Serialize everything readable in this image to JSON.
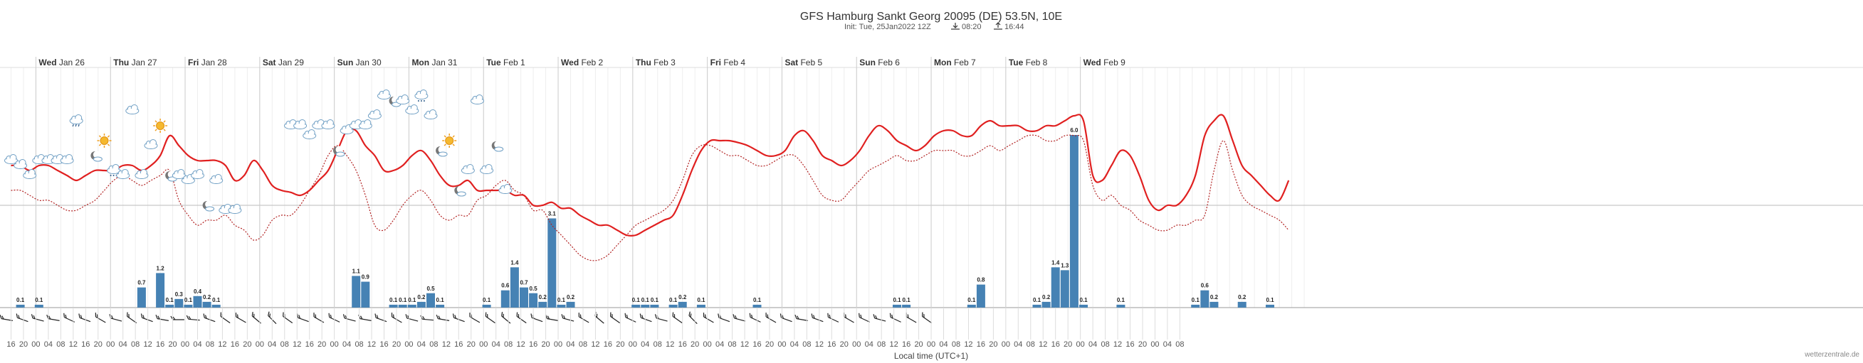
{
  "header": {
    "title": "GFS Hamburg Sankt Georg 20095 (DE) 53.5N, 10E",
    "init": "Init: Tue, 25Jan2022 12Z",
    "sunrise": "08:20",
    "sunset": "16:44"
  },
  "credit": "wetterzentrale.de",
  "chart_data": {
    "type": "meteogram",
    "x_axis": {
      "title": "Local time (UTC+1)",
      "day_labels": [
        {
          "weekday": "Wed",
          "date": "Jan 26"
        },
        {
          "weekday": "Thu",
          "date": "Jan 27"
        },
        {
          "weekday": "Fri",
          "date": "Jan 28"
        },
        {
          "weekday": "Sat",
          "date": "Jan 29"
        },
        {
          "weekday": "Sun",
          "date": "Jan 30"
        },
        {
          "weekday": "Mon",
          "date": "Jan 31"
        },
        {
          "weekday": "Tue",
          "date": "Feb 1"
        },
        {
          "weekday": "Wed",
          "date": "Feb 2"
        },
        {
          "weekday": "Thu",
          "date": "Feb 3"
        },
        {
          "weekday": "Fri",
          "date": "Feb 4"
        },
        {
          "weekday": "Sat",
          "date": "Feb 5"
        },
        {
          "weekday": "Sun",
          "date": "Feb 6"
        },
        {
          "weekday": "Mon",
          "date": "Feb 7"
        },
        {
          "weekday": "Tue",
          "date": "Feb 8"
        },
        {
          "weekday": "Wed",
          "date": "Feb 9"
        }
      ],
      "hour_labels": [
        "16",
        "20",
        "00",
        "04",
        "08",
        "12",
        "16",
        "20",
        "00",
        "04",
        "08",
        "12",
        "16",
        "20",
        "00",
        "04",
        "08",
        "12",
        "16",
        "20",
        "00",
        "04",
        "08",
        "12",
        "16",
        "20",
        "00",
        "04",
        "08",
        "12",
        "16",
        "20",
        "00",
        "04",
        "08",
        "12",
        "16",
        "20",
        "00",
        "04",
        "08",
        "12",
        "16",
        "20",
        "00",
        "04",
        "08",
        "12",
        "16",
        "20",
        "00",
        "04",
        "08",
        "12",
        "16",
        "20",
        "00",
        "04",
        "08",
        "12",
        "16",
        "20",
        "00",
        "04",
        "08",
        "12",
        "16",
        "20",
        "00",
        "04",
        "08",
        "12",
        "16",
        "20",
        "00",
        "04",
        "08",
        "12",
        "16",
        "20",
        "00",
        "04",
        "08",
        "12",
        "16",
        "20",
        "00",
        "04",
        "08",
        "12",
        "16",
        "20",
        "00",
        "04",
        "08"
      ]
    },
    "temperature_line_hour_step": 3,
    "temperature_2m": [
      4.5,
      4.5,
      4.0,
      4.5,
      4.5,
      4.0,
      3.5,
      3.0,
      3.5,
      4.0,
      4.0,
      4.0,
      4.5,
      4.5,
      4.0,
      4.5,
      5.5,
      7.5,
      6.5,
      5.5,
      5.0,
      5.0,
      5.0,
      4.5,
      3.0,
      3.5,
      5.0,
      4.0,
      2.5,
      2.0,
      1.8,
      1.5,
      2.0,
      3.0,
      4.0,
      6.0,
      8.0,
      8.0,
      6.5,
      5.5,
      4.0,
      4.0,
      4.5,
      5.5,
      6.0,
      5.0,
      3.5,
      2.5,
      2.5,
      3.0,
      2.0,
      2.0,
      2.0,
      2.0,
      1.5,
      1.5,
      0.5,
      0.5,
      0.8,
      0.2,
      0.2,
      -0.5,
      -1.0,
      -1.5,
      -1.5,
      -2.0,
      -2.5,
      -2.5,
      -2.0,
      -1.5,
      -1.0,
      -0.5,
      1.5,
      4.0,
      6.0,
      7.0,
      7.0,
      7.0,
      6.8,
      6.5,
      6.0,
      5.5,
      5.5,
      6.0,
      7.5,
      8.0,
      7.0,
      5.5,
      5.0,
      4.5,
      5.0,
      6.0,
      7.5,
      8.5,
      8.0,
      7.0,
      6.5,
      6.0,
      6.5,
      7.5,
      8.0,
      8.0,
      7.5,
      7.5,
      8.5,
      9.0,
      8.5,
      8.5,
      8.5,
      8.0,
      8.0,
      8.5,
      8.5,
      9.0,
      9.5,
      9.0,
      3.5,
      3.0,
      4.5,
      6.0,
      5.5,
      3.5,
      1.0,
      0.0,
      0.5,
      0.5,
      1.5,
      3.5,
      7.5,
      9.0,
      9.5,
      7.0,
      4.5,
      3.5,
      2.5,
      1.5,
      1.0,
      3.0
    ],
    "dewpoint_2m": [
      2.0,
      2.0,
      1.5,
      1.0,
      1.0,
      0.5,
      0.0,
      0.0,
      0.5,
      1.0,
      2.0,
      3.0,
      3.5,
      3.0,
      2.5,
      3.0,
      3.5,
      4.0,
      1.0,
      -0.5,
      -1.5,
      -1.0,
      -1.0,
      -0.5,
      -1.5,
      -2.0,
      -3.0,
      -2.5,
      -1.0,
      -0.5,
      -0.5,
      0.5,
      2.0,
      3.5,
      5.5,
      6.5,
      5.5,
      4.0,
      1.5,
      -1.5,
      -2.0,
      -1.0,
      0.5,
      1.5,
      2.0,
      1.0,
      -0.5,
      -1.0,
      -0.5,
      -0.5,
      1.0,
      1.5,
      2.5,
      3.0,
      2.0,
      1.5,
      0.0,
      0.0,
      -1.5,
      -2.5,
      -3.5,
      -4.5,
      -5.0,
      -5.0,
      -4.5,
      -3.5,
      -2.5,
      -1.5,
      -1.0,
      -0.5,
      0.0,
      1.0,
      3.0,
      5.5,
      6.5,
      6.5,
      6.0,
      5.5,
      5.5,
      5.0,
      4.5,
      4.5,
      5.0,
      5.5,
      5.5,
      4.5,
      3.0,
      1.5,
      1.0,
      1.0,
      2.0,
      3.0,
      4.0,
      4.5,
      5.0,
      5.5,
      5.0,
      5.0,
      5.5,
      6.0,
      6.0,
      6.0,
      5.5,
      5.5,
      6.0,
      6.5,
      6.0,
      6.5,
      7.0,
      7.5,
      7.5,
      7.0,
      7.0,
      7.5,
      7.5,
      7.0,
      2.5,
      1.0,
      1.5,
      0.5,
      0.0,
      -1.0,
      -1.5,
      -2.0,
      -2.0,
      -1.5,
      -1.5,
      -1.0,
      -0.5,
      4.0,
      7.0,
      4.0,
      1.5,
      0.5,
      0.0,
      -0.5,
      -1.0,
      -2.0
    ],
    "precipitation_mm": [
      {
        "hour": 3,
        "value": 0.1
      },
      {
        "hour": 9,
        "value": 0.1
      },
      {
        "hour": 42,
        "value": 0.7
      },
      {
        "hour": 48,
        "value": 1.2
      },
      {
        "hour": 51,
        "value": 0.1
      },
      {
        "hour": 54,
        "value": 0.3
      },
      {
        "hour": 57,
        "value": 0.1
      },
      {
        "hour": 60,
        "value": 0.4
      },
      {
        "hour": 63,
        "value": 0.2
      },
      {
        "hour": 66,
        "value": 0.1
      },
      {
        "hour": 111,
        "value": 1.1
      },
      {
        "hour": 114,
        "value": 0.9
      },
      {
        "hour": 123,
        "value": 0.1
      },
      {
        "hour": 126,
        "value": 0.1
      },
      {
        "hour": 129,
        "value": 0.1
      },
      {
        "hour": 132,
        "value": 0.2
      },
      {
        "hour": 135,
        "value": 0.5
      },
      {
        "hour": 138,
        "value": 0.1
      },
      {
        "hour": 153,
        "value": 0.1
      },
      {
        "hour": 159,
        "value": 0.6
      },
      {
        "hour": 162,
        "value": 1.4
      },
      {
        "hour": 165,
        "value": 0.7
      },
      {
        "hour": 168,
        "value": 0.5
      },
      {
        "hour": 171,
        "value": 0.2
      },
      {
        "hour": 174,
        "value": 3.1
      },
      {
        "hour": 177,
        "value": 0.1
      },
      {
        "hour": 180,
        "value": 0.2
      },
      {
        "hour": 201,
        "value": 0.1
      },
      {
        "hour": 204,
        "value": 0.1
      },
      {
        "hour": 207,
        "value": 0.1
      },
      {
        "hour": 213,
        "value": 0.1
      },
      {
        "hour": 216,
        "value": 0.2
      },
      {
        "hour": 222,
        "value": 0.1
      },
      {
        "hour": 240,
        "value": 0.1
      },
      {
        "hour": 285,
        "value": 0.1
      },
      {
        "hour": 288,
        "value": 0.1
      },
      {
        "hour": 309,
        "value": 0.1
      },
      {
        "hour": 312,
        "value": 0.8
      },
      {
        "hour": 330,
        "value": 0.1
      },
      {
        "hour": 333,
        "value": 0.2
      },
      {
        "hour": 336,
        "value": 1.4
      },
      {
        "hour": 339,
        "value": 1.3
      },
      {
        "hour": 342,
        "value": 6.0
      },
      {
        "hour": 345,
        "value": 0.1
      },
      {
        "hour": 357,
        "value": 0.1
      },
      {
        "hour": 381,
        "value": 0.1
      },
      {
        "hour": 384,
        "value": 0.6
      },
      {
        "hour": 387,
        "value": 0.2
      },
      {
        "hour": 396,
        "value": 0.2
      },
      {
        "hour": 405,
        "value": 0.1
      }
    ],
    "weather_icons": [
      {
        "hour": 0,
        "temp": 5.0,
        "type": "cloud"
      },
      {
        "hour": 3,
        "temp": 4.5,
        "type": "cloud"
      },
      {
        "hour": 6,
        "temp": 3.5,
        "type": "cloud"
      },
      {
        "hour": 9,
        "temp": 5.0,
        "type": "cloud"
      },
      {
        "hour": 12,
        "temp": 5.0,
        "type": "cloud"
      },
      {
        "hour": 15,
        "temp": 5.0,
        "type": "cloud"
      },
      {
        "hour": 18,
        "temp": 5.0,
        "type": "cloud"
      },
      {
        "hour": 21,
        "temp": 9.0,
        "type": "rain-cloud"
      },
      {
        "hour": 27,
        "temp": 5.5,
        "type": "moon"
      },
      {
        "hour": 30,
        "temp": 7.0,
        "type": "sun"
      },
      {
        "hour": 33,
        "temp": 4.0,
        "type": "snow-cloud"
      },
      {
        "hour": 36,
        "temp": 3.5,
        "type": "cloud"
      },
      {
        "hour": 39,
        "temp": 10.0,
        "type": "cloud"
      },
      {
        "hour": 42,
        "temp": 3.5,
        "type": "cloud"
      },
      {
        "hour": 45,
        "temp": 6.5,
        "type": "cloud"
      },
      {
        "hour": 48,
        "temp": 8.5,
        "type": "sun"
      },
      {
        "hour": 51,
        "temp": 3.5,
        "type": "moon"
      },
      {
        "hour": 54,
        "temp": 3.5,
        "type": "cloud"
      },
      {
        "hour": 57,
        "temp": 3.0,
        "type": "cloud"
      },
      {
        "hour": 60,
        "temp": 3.5,
        "type": "cloud"
      },
      {
        "hour": 63,
        "temp": 0.5,
        "type": "moon"
      },
      {
        "hour": 66,
        "temp": 3.0,
        "type": "cloud"
      },
      {
        "hour": 69,
        "temp": 0.0,
        "type": "cloud"
      },
      {
        "hour": 72,
        "temp": 0.0,
        "type": "cloud"
      },
      {
        "hour": 90,
        "temp": 8.5,
        "type": "cloud"
      },
      {
        "hour": 93,
        "temp": 8.5,
        "type": "cloud"
      },
      {
        "hour": 96,
        "temp": 7.5,
        "type": "cloud"
      },
      {
        "hour": 99,
        "temp": 8.5,
        "type": "cloud"
      },
      {
        "hour": 102,
        "temp": 8.5,
        "type": "cloud"
      },
      {
        "hour": 105,
        "temp": 6.0,
        "type": "moon"
      },
      {
        "hour": 108,
        "temp": 8.0,
        "type": "cloud"
      },
      {
        "hour": 111,
        "temp": 8.5,
        "type": "cloud"
      },
      {
        "hour": 114,
        "temp": 8.5,
        "type": "cloud"
      },
      {
        "hour": 117,
        "temp": 9.5,
        "type": "cloud"
      },
      {
        "hour": 120,
        "temp": 11.5,
        "type": "cloud"
      },
      {
        "hour": 123,
        "temp": 11.0,
        "type": "moon"
      },
      {
        "hour": 126,
        "temp": 11.0,
        "type": "cloud"
      },
      {
        "hour": 129,
        "temp": 10.0,
        "type": "cloud"
      },
      {
        "hour": 132,
        "temp": 11.5,
        "type": "snow-cloud"
      },
      {
        "hour": 135,
        "temp": 9.5,
        "type": "cloud"
      },
      {
        "hour": 138,
        "temp": 6.0,
        "type": "moon"
      },
      {
        "hour": 141,
        "temp": 7.0,
        "type": "sun"
      },
      {
        "hour": 144,
        "temp": 2.0,
        "type": "moon"
      },
      {
        "hour": 147,
        "temp": 4.0,
        "type": "cloud"
      },
      {
        "hour": 150,
        "temp": 11.0,
        "type": "cloud"
      },
      {
        "hour": 153,
        "temp": 4.0,
        "type": "cloud"
      },
      {
        "hour": 156,
        "temp": 6.5,
        "type": "moon"
      },
      {
        "hour": 159,
        "temp": 2.0,
        "type": "cloud"
      }
    ],
    "wind_barb_angles_deg": [
      190,
      200,
      195,
      190,
      205,
      200,
      210,
      195,
      215,
      200,
      190,
      180,
      185,
      200,
      215,
      210,
      220,
      225,
      215,
      200,
      210,
      205,
      195,
      190,
      200,
      210,
      195,
      185,
      190,
      200,
      210,
      215,
      220,
      215,
      200,
      190,
      195,
      210,
      220,
      215,
      205,
      200,
      195,
      215,
      225,
      210,
      200,
      195,
      205,
      210,
      200,
      190,
      200,
      205,
      210,
      205,
      195,
      205,
      210,
      215
    ]
  }
}
